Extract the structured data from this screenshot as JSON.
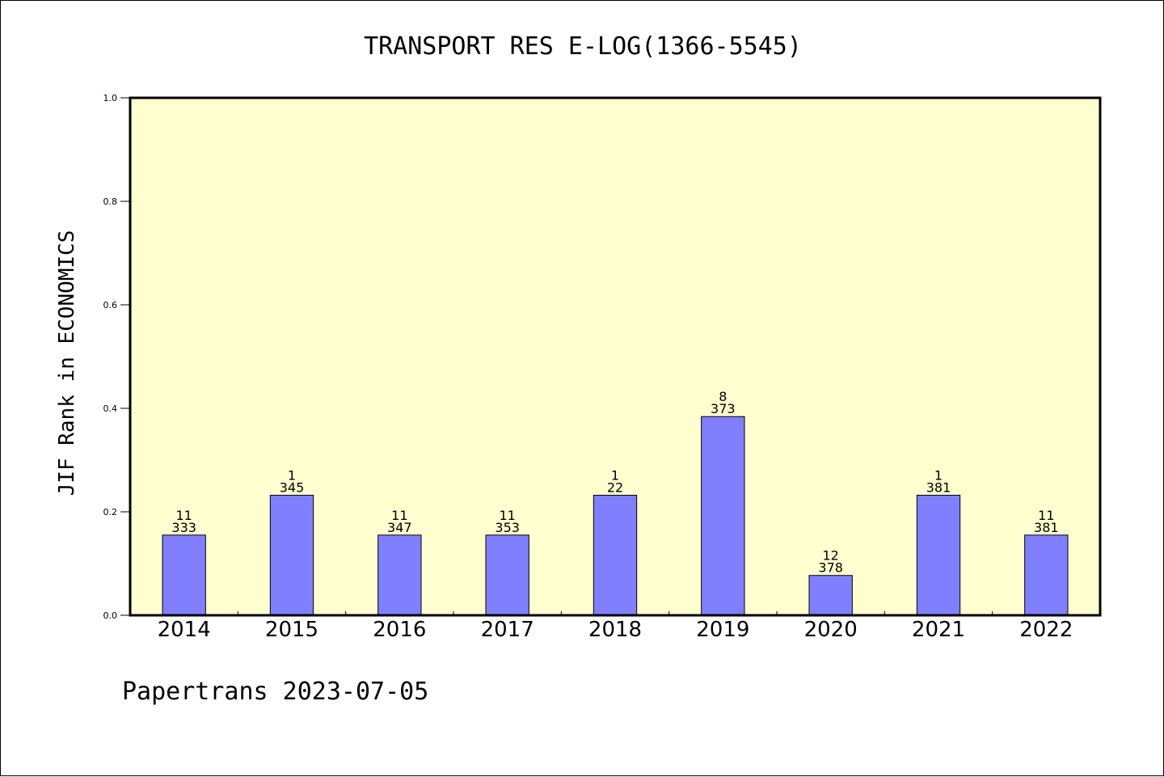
{
  "chart_data": {
    "type": "bar",
    "title": "TRANSPORT RES E-LOG(1366-5545)",
    "ylabel": "JIF Rank in ECONOMICS",
    "xlabel": "",
    "footer": "Papertrans 2023-07-05",
    "ylim": [
      0,
      1.0
    ],
    "yticks": [
      "0.0",
      "0.2",
      "0.4",
      "0.6",
      "0.8",
      "1.0"
    ],
    "grid": false,
    "categories": [
      "2014",
      "2015",
      "2016",
      "2017",
      "2018",
      "2019",
      "2020",
      "2021",
      "2022"
    ],
    "values": [
      0.155,
      0.232,
      0.155,
      0.155,
      0.232,
      0.384,
      0.077,
      0.232,
      0.155
    ],
    "rank_labels": [
      "11",
      "1",
      "11",
      "11",
      "1",
      "8",
      "12",
      "1",
      "11"
    ],
    "total_labels": [
      "333",
      "345",
      "347",
      "353",
      "22",
      "373",
      "378",
      "381",
      "381"
    ],
    "colors": {
      "plot_background": "#ffffd0",
      "bar_fill": "#8080ff",
      "bar_stroke": "#000000",
      "axis": "#000000"
    }
  }
}
